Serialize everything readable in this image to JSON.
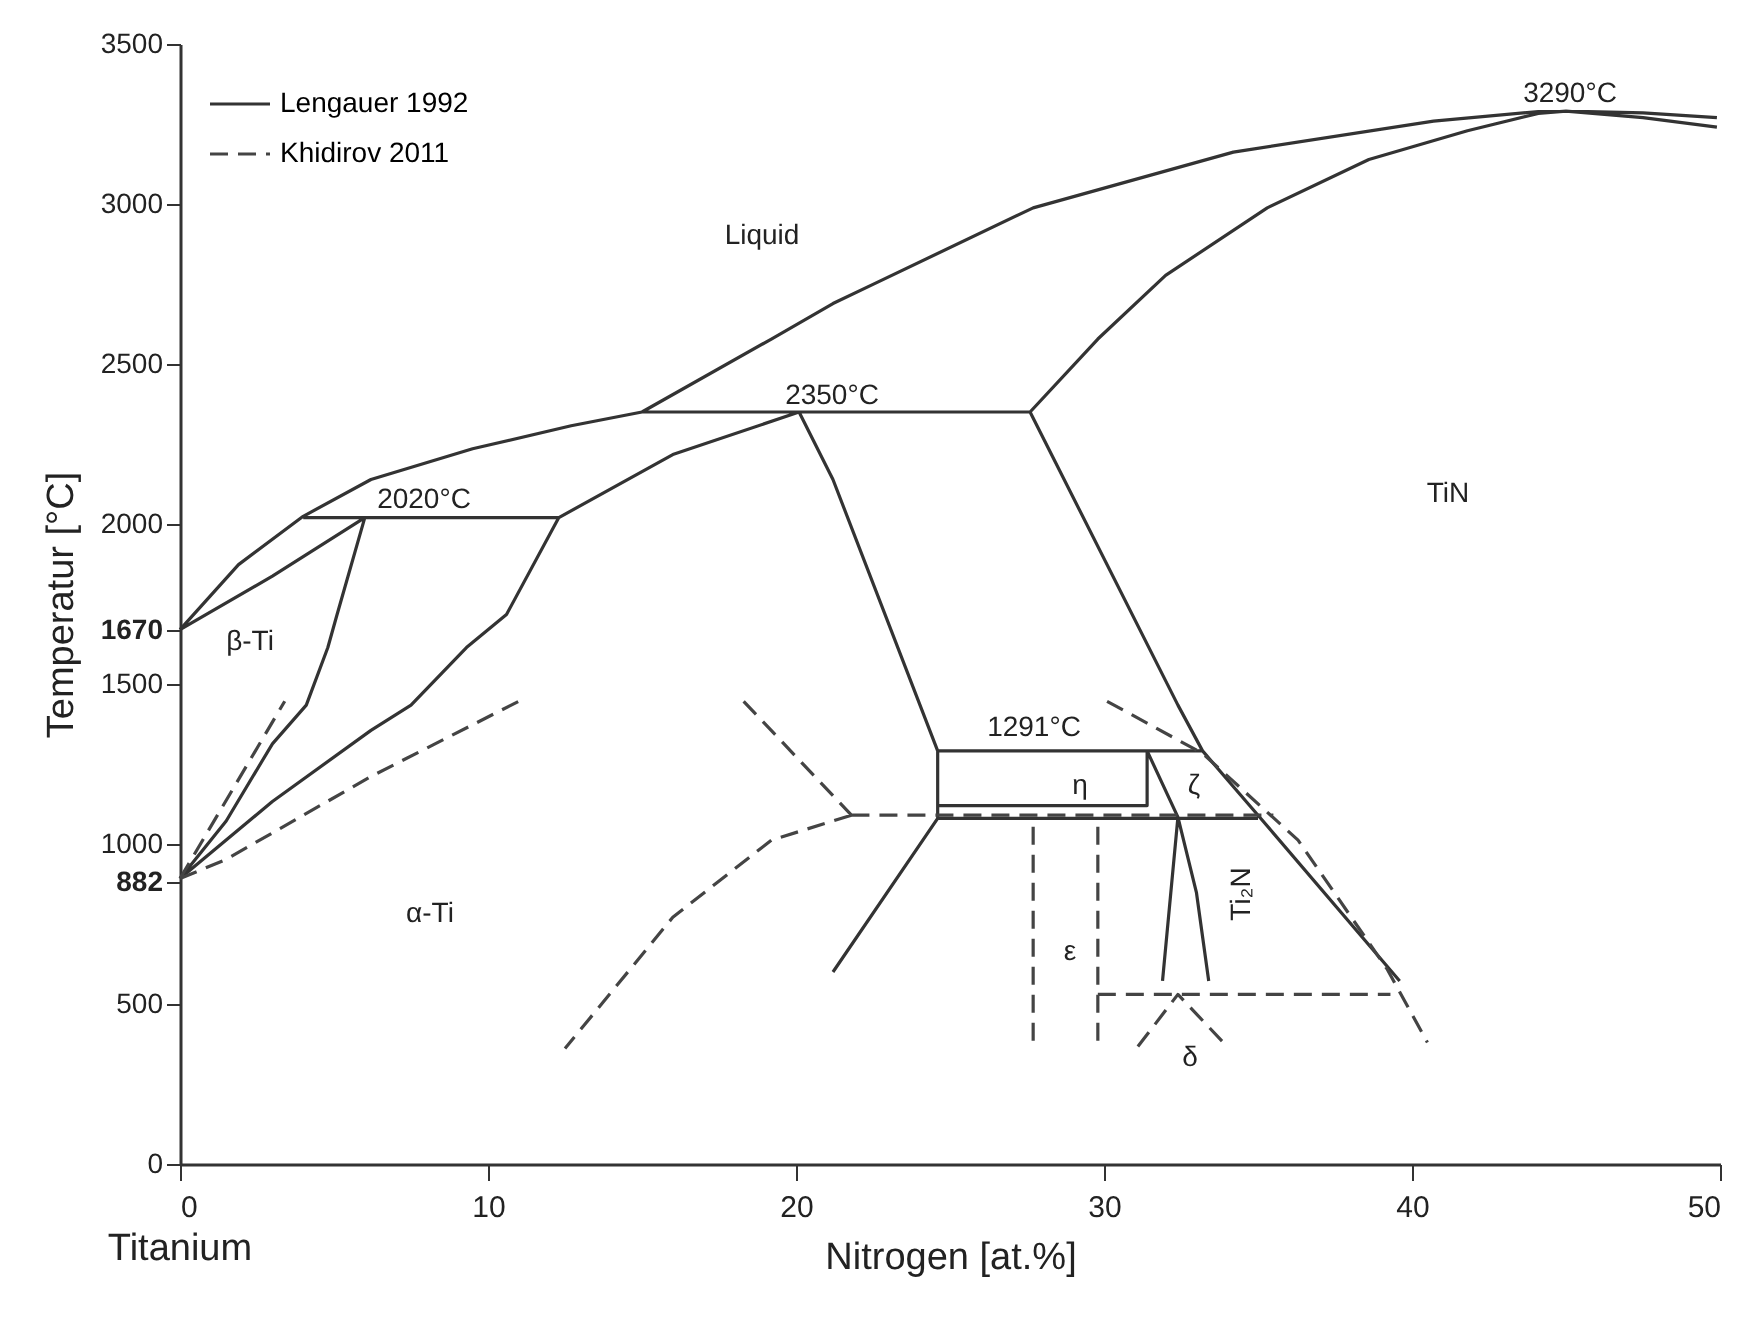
{
  "chart_data": {
    "type": "line",
    "xlabel": "Nitrogen [at.%]",
    "ylabel": "Temperatur [°C]",
    "xlim": [
      0,
      50
    ],
    "xticks": [
      0,
      10,
      20,
      30,
      40,
      50
    ],
    "ylim": [
      0,
      3500
    ],
    "yticks": [
      0,
      500,
      882,
      1000,
      1500,
      1670,
      2000,
      2500,
      3000,
      3500
    ],
    "grid": false,
    "legend": "top left",
    "marker": "none",
    "series": [
      {
        "name": "Lengauer 1992",
        "color": "#333333",
        "line_style": "solid",
        "x": [
          0,
          1.9,
          4.0,
          6.2,
          9.5,
          12.7,
          15.0,
          19.2,
          21.2,
          22.5,
          27.7,
          34.2,
          40.7,
          44.1,
          45.0,
          47.5,
          49.9,
          null,
          27.6,
          29.8,
          32.0,
          35.3,
          38.6,
          41.8,
          44.1,
          45.0,
          47.5,
          49.9,
          null,
          0,
          3.0,
          6.0,
          null,
          4.0,
          12.3,
          null,
          12.3,
          16.0,
          20.1,
          null,
          15.0,
          27.6,
          null,
          6.0,
          5.1,
          4.8,
          4.1,
          3.0,
          1.5,
          0,
          null,
          12.3,
          10.6,
          9.3,
          7.5,
          6.2,
          3.0,
          0,
          null,
          20.1,
          21.2,
          24.6,
          null,
          27.6,
          32.4,
          33.2,
          35.0,
          39.6,
          null,
          24.6,
          33.2,
          null,
          24.6,
          24.6,
          null,
          24.6,
          31.4,
          31.4,
          null,
          24.6,
          35.0,
          null,
          31.4,
          32.4,
          31.9,
          null,
          32.4,
          33.0,
          33.4,
          null,
          24.6,
          21.2
        ],
        "values": [
          1670,
          1873,
          2024,
          2139,
          2235,
          2307,
          2350,
          2578,
          2689,
          2749,
          2988,
          3162,
          3259,
          3289,
          3290,
          3285,
          3270,
          null,
          2350,
          2578,
          2777,
          2988,
          3139,
          3229,
          3283,
          3290,
          3270,
          3240,
          null,
          1670,
          1837,
          2020,
          null,
          2020,
          2020,
          null,
          2020,
          2217,
          2350,
          null,
          2350,
          2350,
          null,
          2020,
          1717,
          1614,
          1434,
          1313,
          1072,
          892,
          null,
          2020,
          1717,
          1614,
          1434,
          1355,
          1133,
          892,
          null,
          2350,
          2139,
          1291,
          null,
          2350,
          1434,
          1291,
          1090,
          572,
          null,
          1291,
          1291,
          null,
          1291,
          1080,
          null,
          1120,
          1120,
          1291,
          null,
          1080,
          1080,
          null,
          1291,
          1084,
          572,
          null,
          1084,
          849,
          572,
          null,
          1080,
          600
        ]
      },
      {
        "name": "Khidirov 2011",
        "color": "#444444",
        "line_style": "dashed",
        "x": [
          0,
          3.4,
          null,
          0,
          1.5,
          6.2,
          11.0,
          null,
          18.3,
          21.8,
          null,
          21.8,
          19.2,
          16.0,
          12.5,
          null,
          21.8,
          35.5,
          null,
          27.7,
          27.7,
          null,
          29.8,
          29.8,
          null,
          29.8,
          39.3,
          null,
          31.1,
          32.4,
          34.0,
          null,
          30.1,
          33.2,
          36.3,
          39.2,
          40.5
        ],
        "values": [
          892,
          1446,
          null,
          892,
          952,
          1211,
          1446,
          null,
          1446,
          1090,
          null,
          1090,
          1012,
          771,
          361,
          null,
          1090,
          1090,
          null,
          1054,
          361,
          null,
          1054,
          361,
          null,
          530,
          530,
          null,
          367,
          530,
          367,
          null,
          1446,
          1283,
          1012,
          608,
          380
        ]
      }
    ],
    "annotations": [
      "Liquid",
      "TiN",
      "2020°C",
      "2350°C",
      "3290°C",
      "β-Ti",
      "α-Ti",
      "1291°C",
      "η",
      "ζ",
      "Ti₂N",
      "ε",
      "δ",
      "Titanium"
    ]
  }
}
